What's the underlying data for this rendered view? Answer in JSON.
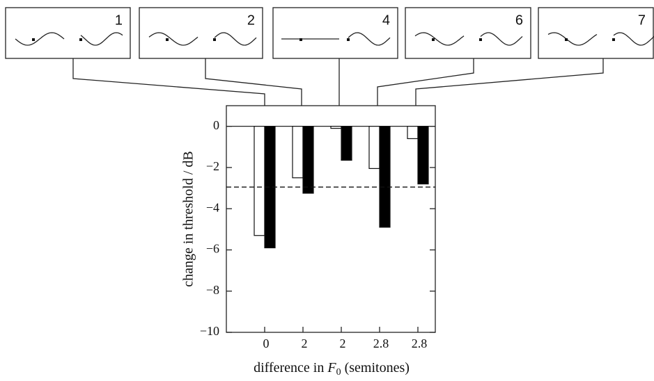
{
  "chart_data": {
    "type": "bar",
    "categories": [
      "0",
      "2",
      "2",
      "2.8",
      "2.8"
    ],
    "series": [
      {
        "color": "#ffffff",
        "values": [
          -5.3,
          -2.5,
          -0.1,
          -2.05,
          -0.6
        ]
      },
      {
        "color": "#000000",
        "values": [
          -5.9,
          -3.25,
          -1.65,
          -4.9,
          -2.8
        ]
      }
    ],
    "ylim": [
      -10,
      1
    ],
    "yticks": [
      {
        "value": 0,
        "label": "0"
      },
      {
        "value": -2,
        "label": "−2"
      },
      {
        "value": -4,
        "label": "−4"
      },
      {
        "value": -6,
        "label": "−6"
      },
      {
        "value": -8,
        "label": "−8"
      },
      {
        "value": -10,
        "label": "−10"
      }
    ],
    "reference_line": -2.95,
    "y_label": "change in threshold / dB",
    "x_label": [
      "difference in ",
      "F",
      "0",
      " (semitones)"
    ],
    "condition_labels": [
      "1",
      "2",
      "4",
      "6",
      "7"
    ]
  }
}
